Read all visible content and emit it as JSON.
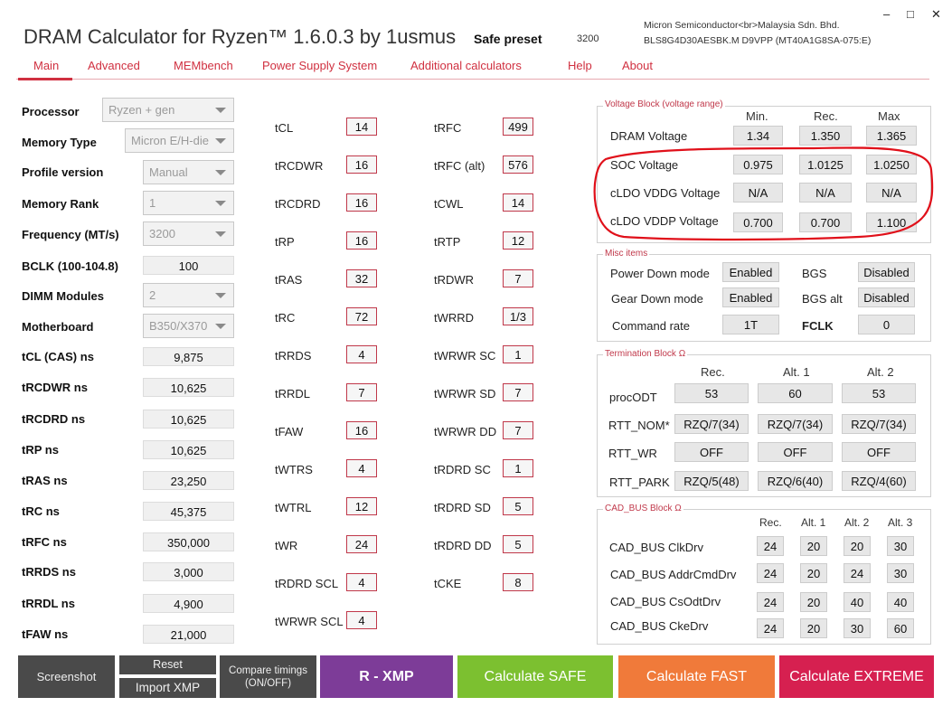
{
  "window": {
    "title": "DRAM Calculator for Ryzen™ 1.6.0.3 by 1usmus",
    "preset_label": "Safe preset",
    "preset_value": "3200",
    "maker_line1": "Micron Semiconductor<br>Malaysia Sdn. Bhd.",
    "maker_line2": "BLS8G4D30AESBK.M D9VPP (MT40A1G8SA-075:E)",
    "minimize": "–",
    "maximize": "□",
    "close": "✕"
  },
  "menu": [
    "Main",
    "Advanced",
    "MEMbench",
    "Power Supply System",
    "Additional calculators",
    "Help",
    "About"
  ],
  "left": {
    "processor": {
      "label": "Processor",
      "value": "Ryzen + gen"
    },
    "memory_type": {
      "label": "Memory Type",
      "value": "Micron E/H-die"
    },
    "profile_version": {
      "label": "Profile version",
      "value": "Manual"
    },
    "memory_rank": {
      "label": "Memory Rank",
      "value": "1"
    },
    "frequency": {
      "label": "Frequency (MT/s)",
      "value": "3200"
    },
    "bclk": {
      "label": "BCLK (100-104.8)",
      "value": "100"
    },
    "dimm_modules": {
      "label": "DIMM Modules",
      "value": "2"
    },
    "motherboard": {
      "label": "Motherboard",
      "value": "B350/X370"
    },
    "ns": [
      {
        "label": "tCL (CAS) ns",
        "value": "9,875"
      },
      {
        "label": "tRCDWR ns",
        "value": "10,625"
      },
      {
        "label": "tRCDRD ns",
        "value": "10,625"
      },
      {
        "label": "tRP ns",
        "value": "10,625"
      },
      {
        "label": "tRAS ns",
        "value": "23,250"
      },
      {
        "label": "tRC ns",
        "value": "45,375"
      },
      {
        "label": "tRFC ns",
        "value": "350,000"
      },
      {
        "label": "tRRDS ns",
        "value": "3,000"
      },
      {
        "label": "tRRDL ns",
        "value": "4,900"
      },
      {
        "label": "tFAW ns",
        "value": "21,000"
      }
    ]
  },
  "timings_col1": [
    {
      "label": "tCL",
      "value": "14"
    },
    {
      "label": "tRCDWR",
      "value": "16"
    },
    {
      "label": "tRCDRD",
      "value": "16"
    },
    {
      "label": "tRP",
      "value": "16"
    },
    {
      "label": "tRAS",
      "value": "32"
    },
    {
      "label": "tRC",
      "value": "72"
    },
    {
      "label": "tRRDS",
      "value": "4"
    },
    {
      "label": "tRRDL",
      "value": "7"
    },
    {
      "label": "tFAW",
      "value": "16"
    },
    {
      "label": "tWTRS",
      "value": "4"
    },
    {
      "label": "tWTRL",
      "value": "12"
    },
    {
      "label": "tWR",
      "value": "24"
    },
    {
      "label": "tRDRD SCL",
      "value": "4"
    },
    {
      "label": "tWRWR SCL",
      "value": "4"
    }
  ],
  "timings_col2": [
    {
      "label": "tRFC",
      "value": "499"
    },
    {
      "label": "tRFC (alt)",
      "value": "576"
    },
    {
      "label": "tCWL",
      "value": "14"
    },
    {
      "label": "tRTP",
      "value": "12"
    },
    {
      "label": "tRDWR",
      "value": "7"
    },
    {
      "label": "tWRRD",
      "value": "1/3"
    },
    {
      "label": "tWRWR SC",
      "value": "1"
    },
    {
      "label": "tWRWR SD",
      "value": "7"
    },
    {
      "label": "tWRWR DD",
      "value": "7"
    },
    {
      "label": "tRDRD SC",
      "value": "1"
    },
    {
      "label": "tRDRD SD",
      "value": "5"
    },
    {
      "label": "tRDRD DD",
      "value": "5"
    },
    {
      "label": "tCKE",
      "value": "8"
    }
  ],
  "voltage": {
    "title": "Voltage Block (voltage range)",
    "headers": [
      "Min.",
      "Rec.",
      "Max"
    ],
    "rows": [
      {
        "label": "DRAM Voltage",
        "values": [
          "1.34",
          "1.350",
          "1.365"
        ]
      },
      {
        "label": "SOC Voltage",
        "values": [
          "0.975",
          "1.0125",
          "1.0250"
        ]
      },
      {
        "label": "cLDO VDDG Voltage",
        "values": [
          "N/A",
          "N/A",
          "N/A"
        ]
      },
      {
        "label": "cLDO VDDP Voltage",
        "values": [
          "0.700",
          "0.700",
          "1.100"
        ]
      }
    ]
  },
  "misc": {
    "title": "Misc items",
    "power_down_label": "Power Down mode",
    "power_down": "Enabled",
    "bgs_label": "BGS",
    "bgs": "Disabled",
    "gear_down_label": "Gear Down mode",
    "gear_down": "Enabled",
    "bgs_alt_label": "BGS alt",
    "bgs_alt": "Disabled",
    "command_rate_label": "Command rate",
    "command_rate": "1T",
    "fclk_label": "FCLK",
    "fclk": "0"
  },
  "termination": {
    "title": "Termination Block Ω",
    "headers": [
      "Rec.",
      "Alt. 1",
      "Alt. 2"
    ],
    "rows": [
      {
        "label": "procODT",
        "values": [
          "53",
          "60",
          "53"
        ]
      },
      {
        "label": "RTT_NOM*",
        "values": [
          "RZQ/7(34)",
          "RZQ/7(34)",
          "RZQ/7(34)"
        ]
      },
      {
        "label": "RTT_WR",
        "values": [
          "OFF",
          "OFF",
          "OFF"
        ]
      },
      {
        "label": "RTT_PARK",
        "values": [
          "RZQ/5(48)",
          "RZQ/6(40)",
          "RZQ/4(60)"
        ]
      }
    ]
  },
  "cadbus": {
    "title": "CAD_BUS Block Ω",
    "headers": [
      "Rec.",
      "Alt. 1",
      "Alt. 2",
      "Alt. 3"
    ],
    "rows": [
      {
        "label": "CAD_BUS ClkDrv",
        "values": [
          "24",
          "20",
          "20",
          "30"
        ]
      },
      {
        "label": "CAD_BUS AddrCmdDrv",
        "values": [
          "24",
          "20",
          "24",
          "30"
        ]
      },
      {
        "label": "CAD_BUS CsOdtDrv",
        "values": [
          "24",
          "20",
          "40",
          "40"
        ]
      },
      {
        "label": "CAD_BUS CkeDrv",
        "values": [
          "24",
          "20",
          "30",
          "60"
        ]
      }
    ]
  },
  "buttons": {
    "screenshot": "Screenshot",
    "reset": "Reset",
    "import_xmp": "Import XMP",
    "compare_line1": "Compare timings",
    "compare_line2": "(ON/OFF)",
    "r_xmp": "R - XMP",
    "calc_safe": "Calculate SAFE",
    "calc_fast": "Calculate FAST",
    "calc_extreme": "Calculate EXTREME"
  },
  "colors": {
    "accent": "#d03040",
    "xmp": "#7d3c98",
    "safe": "#7cc030",
    "fast": "#f07a3a",
    "extreme": "#d62050",
    "dark_button": "#4a4a4a"
  }
}
